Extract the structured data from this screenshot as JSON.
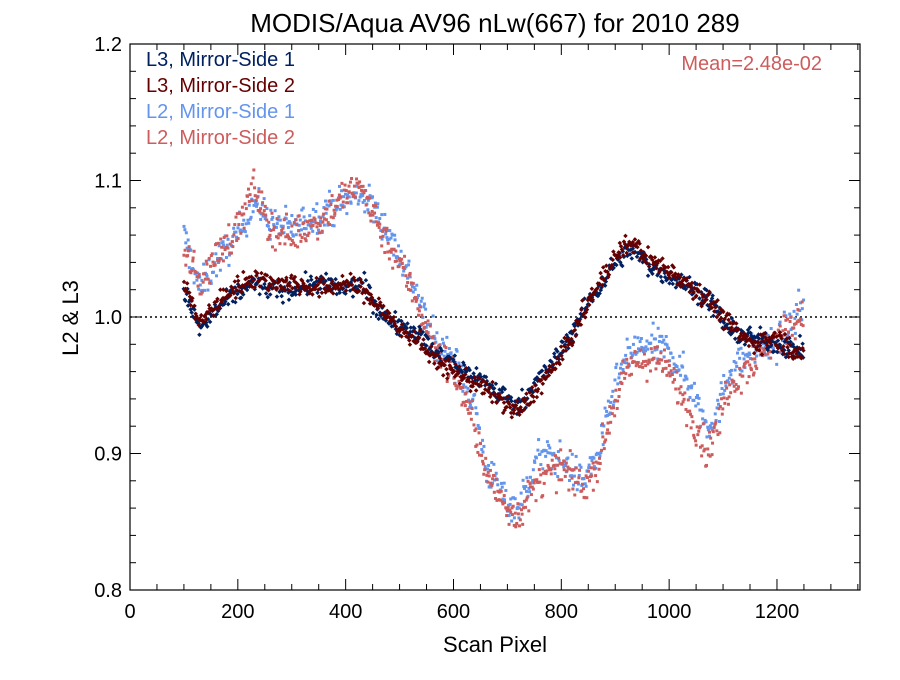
{
  "chart_data": {
    "type": "scatter",
    "title": "MODIS/Aqua AV96 nLw(667) for 2010 289",
    "xlabel": "Scan Pixel",
    "ylabel": "L2 & L3",
    "xlim": [
      0,
      1354
    ],
    "ylim": [
      0.8,
      1.2
    ],
    "x_ticks": [
      0,
      200,
      400,
      600,
      800,
      1000,
      1200
    ],
    "x_tick_labels": [
      "0",
      "200",
      "400",
      "600",
      "800",
      "1000",
      "1200"
    ],
    "y_ticks": [
      0.8,
      0.9,
      1.0,
      1.1,
      1.2
    ],
    "y_tick_labels": [
      "0.8",
      "0.9",
      "1.0",
      "1.1",
      "1.2"
    ],
    "reference_line": 1.0,
    "grid": false,
    "legend_position": "top-left",
    "annotation": "Mean=2.48e-02",
    "annotation_color": "#cd5c5c",
    "x_range_points": [
      100,
      1250
    ],
    "series": [
      {
        "name": "L3, Mirror-Side 1",
        "color": "#002060",
        "marker": "diamond",
        "jitter": 0.007,
        "points": [
          [
            100,
            1.02
          ],
          [
            130,
            0.99
          ],
          [
            160,
            1.005
          ],
          [
            190,
            1.015
          ],
          [
            230,
            1.025
          ],
          [
            260,
            1.02
          ],
          [
            300,
            1.02
          ],
          [
            350,
            1.025
          ],
          [
            400,
            1.02
          ],
          [
            430,
            1.025
          ],
          [
            470,
            1.0
          ],
          [
            500,
            0.995
          ],
          [
            530,
            0.99
          ],
          [
            560,
            0.975
          ],
          [
            600,
            0.965
          ],
          [
            650,
            0.955
          ],
          [
            700,
            0.94
          ],
          [
            720,
            0.935
          ],
          [
            760,
            0.955
          ],
          [
            800,
            0.975
          ],
          [
            850,
            1.01
          ],
          [
            900,
            1.04
          ],
          [
            930,
            1.05
          ],
          [
            970,
            1.035
          ],
          [
            1000,
            1.03
          ],
          [
            1050,
            1.02
          ],
          [
            1080,
            1.01
          ],
          [
            1110,
            0.99
          ],
          [
            1150,
            0.985
          ],
          [
            1200,
            0.98
          ],
          [
            1250,
            0.975
          ]
        ]
      },
      {
        "name": "L3, Mirror-Side 2",
        "color": "#660000",
        "marker": "diamond",
        "jitter": 0.007,
        "points": [
          [
            100,
            1.025
          ],
          [
            130,
            0.995
          ],
          [
            160,
            1.01
          ],
          [
            190,
            1.02
          ],
          [
            230,
            1.03
          ],
          [
            260,
            1.025
          ],
          [
            300,
            1.025
          ],
          [
            350,
            1.02
          ],
          [
            400,
            1.025
          ],
          [
            430,
            1.02
          ],
          [
            470,
            1.005
          ],
          [
            500,
            0.99
          ],
          [
            530,
            0.985
          ],
          [
            560,
            0.97
          ],
          [
            600,
            0.96
          ],
          [
            650,
            0.95
          ],
          [
            700,
            0.935
          ],
          [
            720,
            0.93
          ],
          [
            760,
            0.95
          ],
          [
            800,
            0.97
          ],
          [
            850,
            1.01
          ],
          [
            900,
            1.045
          ],
          [
            930,
            1.055
          ],
          [
            970,
            1.04
          ],
          [
            1000,
            1.035
          ],
          [
            1050,
            1.02
          ],
          [
            1080,
            1.01
          ],
          [
            1110,
            0.995
          ],
          [
            1150,
            0.98
          ],
          [
            1200,
            0.985
          ],
          [
            1250,
            0.97
          ]
        ]
      },
      {
        "name": "L2, Mirror-Side 1",
        "color": "#6495ed",
        "marker": "square",
        "jitter": 0.012,
        "points": [
          [
            100,
            1.06
          ],
          [
            130,
            1.02
          ],
          [
            160,
            1.04
          ],
          [
            200,
            1.06
          ],
          [
            230,
            1.085
          ],
          [
            260,
            1.07
          ],
          [
            300,
            1.065
          ],
          [
            350,
            1.075
          ],
          [
            400,
            1.085
          ],
          [
            430,
            1.09
          ],
          [
            470,
            1.07
          ],
          [
            500,
            1.045
          ],
          [
            530,
            1.02
          ],
          [
            560,
            0.985
          ],
          [
            600,
            0.97
          ],
          [
            640,
            0.935
          ],
          [
            660,
            0.89
          ],
          [
            700,
            0.865
          ],
          [
            720,
            0.86
          ],
          [
            760,
            0.9
          ],
          [
            800,
            0.895
          ],
          [
            840,
            0.88
          ],
          [
            870,
            0.9
          ],
          [
            900,
            0.95
          ],
          [
            930,
            0.975
          ],
          [
            970,
            0.98
          ],
          [
            1000,
            0.975
          ],
          [
            1040,
            0.95
          ],
          [
            1070,
            0.92
          ],
          [
            1090,
            0.93
          ],
          [
            1110,
            0.96
          ],
          [
            1150,
            0.975
          ],
          [
            1200,
            0.98
          ],
          [
            1250,
            1.01
          ]
        ]
      },
      {
        "name": "L2, Mirror-Side 2",
        "color": "#cd5c5c",
        "marker": "square",
        "jitter": 0.012,
        "points": [
          [
            100,
            1.05
          ],
          [
            130,
            1.025
          ],
          [
            160,
            1.045
          ],
          [
            200,
            1.065
          ],
          [
            230,
            1.095
          ],
          [
            260,
            1.065
          ],
          [
            300,
            1.06
          ],
          [
            350,
            1.07
          ],
          [
            400,
            1.09
          ],
          [
            430,
            1.095
          ],
          [
            470,
            1.06
          ],
          [
            500,
            1.04
          ],
          [
            530,
            1.015
          ],
          [
            560,
            0.98
          ],
          [
            600,
            0.96
          ],
          [
            640,
            0.92
          ],
          [
            660,
            0.885
          ],
          [
            700,
            0.86
          ],
          [
            720,
            0.855
          ],
          [
            760,
            0.88
          ],
          [
            800,
            0.89
          ],
          [
            840,
            0.875
          ],
          [
            870,
            0.895
          ],
          [
            900,
            0.94
          ],
          [
            930,
            0.965
          ],
          [
            970,
            0.97
          ],
          [
            1000,
            0.96
          ],
          [
            1040,
            0.93
          ],
          [
            1070,
            0.9
          ],
          [
            1090,
            0.92
          ],
          [
            1110,
            0.95
          ],
          [
            1150,
            0.965
          ],
          [
            1200,
            0.985
          ],
          [
            1250,
            1.0
          ]
        ]
      }
    ]
  }
}
